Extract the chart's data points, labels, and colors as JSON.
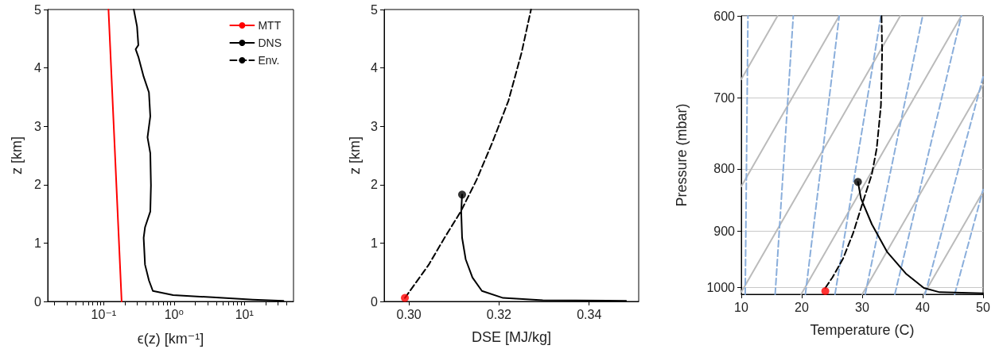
{
  "chart_data": [
    {
      "type": "line",
      "xlabel": "ϵ(z) [km⁻¹]",
      "ylabel": "z [km]",
      "log": "x",
      "legend": "top right",
      "marker": "none",
      "xlim": [
        0.016,
        50
      ],
      "ylim": [
        0,
        5
      ],
      "xticks": [
        {
          "value": 0.02,
          "label": null
        },
        {
          "value": 0.03,
          "label": null
        },
        {
          "value": 0.04,
          "label": null
        },
        {
          "value": 0.05,
          "label": null
        },
        {
          "value": 0.06,
          "label": null
        },
        {
          "value": 0.07,
          "label": null
        },
        {
          "value": 0.08,
          "label": null
        },
        {
          "value": 0.09,
          "label": null
        },
        {
          "value": 0.1,
          "label": "10⁻¹"
        },
        {
          "value": 0.2,
          "label": null
        },
        {
          "value": 0.3,
          "label": null
        },
        {
          "value": 0.4,
          "label": null
        },
        {
          "value": 0.5,
          "label": null
        },
        {
          "value": 0.6,
          "label": null
        },
        {
          "value": 0.7,
          "label": null
        },
        {
          "value": 0.8,
          "label": null
        },
        {
          "value": 0.9,
          "label": null
        },
        {
          "value": 1,
          "label": "10⁰"
        },
        {
          "value": 2,
          "label": null
        },
        {
          "value": 3,
          "label": null
        },
        {
          "value": 4,
          "label": null
        },
        {
          "value": 5,
          "label": null
        },
        {
          "value": 6,
          "label": null
        },
        {
          "value": 7,
          "label": null
        },
        {
          "value": 8,
          "label": null
        },
        {
          "value": 9,
          "label": null
        },
        {
          "value": 10,
          "label": "10¹"
        },
        {
          "value": 20,
          "label": null
        },
        {
          "value": 30,
          "label": null
        },
        {
          "value": 40,
          "label": null
        }
      ],
      "yticks": [
        0,
        1,
        2,
        3,
        4,
        5
      ],
      "series": [
        {
          "name": "MTT",
          "color": "#ff0000",
          "line_style": "solid",
          "x": [
            0.18,
            0.117
          ],
          "values": [
            0,
            5
          ]
        },
        {
          "name": "DNS",
          "color": "#000000",
          "line_style": "solid",
          "x": [
            36,
            13.2,
            3.57,
            0.97,
            0.5,
            0.44,
            0.387,
            0.37,
            0.387,
            0.46,
            0.47,
            0.46,
            0.42,
            0.46,
            0.44,
            0.37,
            0.311,
            0.285,
            0.311,
            0.298,
            0.268
          ],
          "values": [
            0.01,
            0.03,
            0.07,
            0.11,
            0.18,
            0.36,
            0.63,
            1.09,
            1.27,
            1.54,
            1.99,
            2.54,
            2.81,
            3.17,
            3.58,
            3.85,
            4.19,
            4.32,
            4.39,
            4.71,
            5
          ]
        },
        {
          "name": "Env.",
          "color": "#000000",
          "line_style": "dashed"
        }
      ]
    },
    {
      "type": "line",
      "xlabel": "DSE [MJ/kg]",
      "ylabel": "z [km]",
      "marker": "none",
      "xlim": [
        0.2945,
        0.351
      ],
      "ylim": [
        0,
        5
      ],
      "xticks": [
        {
          "value": 0.3,
          "label": "0.30"
        },
        0.32,
        0.34
      ],
      "yticks": [
        0,
        1,
        2,
        3,
        4,
        5
      ],
      "series": [
        {
          "color": "#000000",
          "line_style": "dashed",
          "x": [
            0.2991,
            0.3044,
            0.3079,
            0.3115,
            0.315,
            0.3185,
            0.3221,
            0.325,
            0.3271
          ],
          "values": [
            0.06,
            0.63,
            1.09,
            1.54,
            2.08,
            2.72,
            3.44,
            4.26,
            5
          ]
        },
        {
          "color": "#000000",
          "line_style": "solid",
          "x": [
            0.3118,
            0.3116,
            0.3118,
            0.3126,
            0.3141,
            0.3162,
            0.3209,
            0.3297,
            0.3482
          ],
          "values": [
            1.83,
            1.54,
            1.09,
            0.72,
            0.41,
            0.18,
            0.06,
            0.02,
            0.01
          ]
        },
        {
          "type": "scatter",
          "color": "#000000",
          "marker": "circle",
          "x": [
            0.3118
          ],
          "values": [
            1.83
          ]
        },
        {
          "type": "scatter",
          "color": "#ff0000",
          "marker": "circle",
          "x": [
            0.2991
          ],
          "values": [
            0.06
          ]
        }
      ]
    },
    {
      "type": "line",
      "xlabel": "Temperature (C)",
      "ylabel": "Pressure (mbar)",
      "log": "y",
      "grid": "y",
      "marker": "none",
      "xlim": [
        10,
        50
      ],
      "ylim": [
        1013,
        600
      ],
      "xticks": [
        10,
        20,
        30,
        40,
        50
      ],
      "yticks": [
        600,
        700,
        800,
        900,
        1000
      ],
      "series": [
        {
          "color": "#bbbbbb",
          "line_style": "solid",
          "x": [
            10,
            16.0
          ],
          "values": [
            676,
            600
          ]
        },
        {
          "color": "#bbbbbb",
          "line_style": "solid",
          "x": [
            10,
            26.2
          ],
          "values": [
            827,
            600
          ]
        },
        {
          "color": "#bbbbbb",
          "line_style": "solid",
          "x": [
            10,
            36.3
          ],
          "values": [
            1009,
            600
          ]
        },
        {
          "color": "#bbbbbb",
          "line_style": "solid",
          "x": [
            19.9,
            46.4
          ],
          "values": [
            1013,
            600
          ]
        },
        {
          "color": "#bbbbbb",
          "line_style": "solid",
          "x": [
            30.0,
            50
          ],
          "values": [
            1013,
            683
          ]
        },
        {
          "color": "#bbbbbb",
          "line_style": "solid",
          "x": [
            40.2,
            50
          ],
          "values": [
            1013,
            835
          ]
        },
        {
          "color": "#8aaedb",
          "line_style": "dashed",
          "x": [
            10.65,
            11.1
          ],
          "values": [
            1013,
            600
          ]
        },
        {
          "color": "#8aaedb",
          "line_style": "dashed",
          "x": [
            15.6,
            18.6
          ],
          "values": [
            1013,
            600
          ]
        },
        {
          "color": "#8aaedb",
          "line_style": "dashed",
          "x": [
            20.6,
            26.2
          ],
          "values": [
            1013,
            600
          ]
        },
        {
          "color": "#8aaedb",
          "line_style": "dashed",
          "x": [
            25.5,
            33.1
          ],
          "values": [
            1013,
            600
          ]
        },
        {
          "color": "#8aaedb",
          "line_style": "dashed",
          "x": [
            30.5,
            40.0
          ],
          "values": [
            1013,
            600
          ]
        },
        {
          "color": "#8aaedb",
          "line_style": "dashed",
          "x": [
            35.4,
            46.4
          ],
          "values": [
            1013,
            600
          ]
        },
        {
          "color": "#8aaedb",
          "line_style": "dashed",
          "x": [
            40.4,
            50
          ],
          "values": [
            1013,
            673
          ]
        },
        {
          "color": "#8aaedb",
          "line_style": "dashed",
          "x": [
            45.3,
            50
          ],
          "values": [
            1013,
            832
          ]
        },
        {
          "color": "#000000",
          "line_style": "dashed",
          "x": [
            23.9,
            25.1,
            26.8,
            28.5,
            30.3,
            31.6,
            32.4,
            33.1,
            33.3,
            33.2
          ],
          "values": [
            1001,
            981,
            948,
            903,
            846,
            808,
            770,
            710,
            643,
            600
          ]
        },
        {
          "color": "#000000",
          "line_style": "solid",
          "x": [
            29.3,
            29.8,
            31.6,
            34.1,
            37.2,
            40.2,
            42.8,
            50
          ],
          "values": [
            820,
            846,
            888,
            935,
            974,
            1001,
            1009,
            1011
          ]
        },
        {
          "type": "scatter",
          "color": "#000000",
          "marker": "circle",
          "x": [
            29.3
          ],
          "values": [
            820
          ]
        },
        {
          "type": "scatter",
          "color": "#ff0000",
          "marker": "circle",
          "x": [
            23.9
          ],
          "values": [
            1007
          ]
        }
      ]
    }
  ]
}
